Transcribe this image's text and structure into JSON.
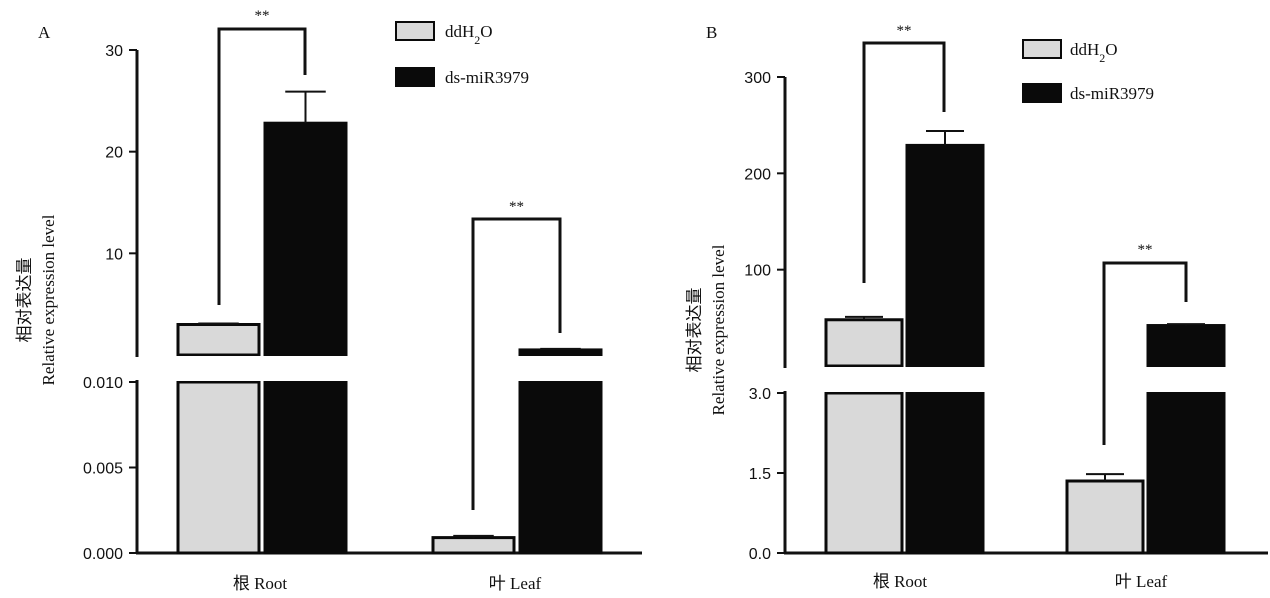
{
  "chart_data": [
    {
      "panel_label": "A",
      "type": "bar",
      "categories": [
        "根 Root",
        "叶 Leaf"
      ],
      "ylabel_cn": "相对表达量",
      "ylabel_en": "Relative expression level",
      "axis_break": true,
      "upper_segment": {
        "ticks": [
          "10",
          "20",
          "30"
        ],
        "ylim": [
          0,
          30
        ]
      },
      "lower_segment": {
        "ticks": [
          "0.000",
          "0.005",
          "0.010"
        ],
        "ylim": [
          0,
          0.01
        ]
      },
      "series": [
        {
          "name": "ddH2O",
          "color": "#d9d9d9",
          "values": [
            3.0,
            0.0009
          ],
          "errors": [
            0.1,
            0.0001
          ]
        },
        {
          "name": "ds-miR3979",
          "color": "#0a0a0a",
          "values": [
            22.8,
            0.5
          ],
          "errors": [
            3.1,
            0.1
          ]
        }
      ],
      "significance": [
        "**",
        "**"
      ],
      "legend": {
        "placement": "top-right",
        "items": [
          "ddH2O",
          "ds-miR3979"
        ]
      }
    },
    {
      "panel_label": "B",
      "type": "bar",
      "categories": [
        "根 Root",
        "叶 Leaf"
      ],
      "ylabel_cn": "相对表达量",
      "ylabel_en": "Relative expression level",
      "axis_break": true,
      "upper_segment": {
        "ticks": [
          "100",
          "200",
          "300"
        ],
        "ylim": [
          0,
          300
        ]
      },
      "lower_segment": {
        "ticks": [
          "0.0",
          "1.5",
          "3.0"
        ],
        "ylim": [
          0,
          3.0
        ]
      },
      "series": [
        {
          "name": "ddH2O",
          "color": "#d9d9d9",
          "values": [
            48,
            1.35
          ],
          "errors": [
            3,
            0.13
          ]
        },
        {
          "name": "ds-miR3979",
          "color": "#0a0a0a",
          "values": [
            229,
            42
          ],
          "errors": [
            15,
            1.5
          ]
        }
      ],
      "significance": [
        "**",
        "**"
      ],
      "legend": {
        "placement": "top-right",
        "items": [
          "ddH2O",
          "ds-miR3979"
        ]
      }
    }
  ]
}
